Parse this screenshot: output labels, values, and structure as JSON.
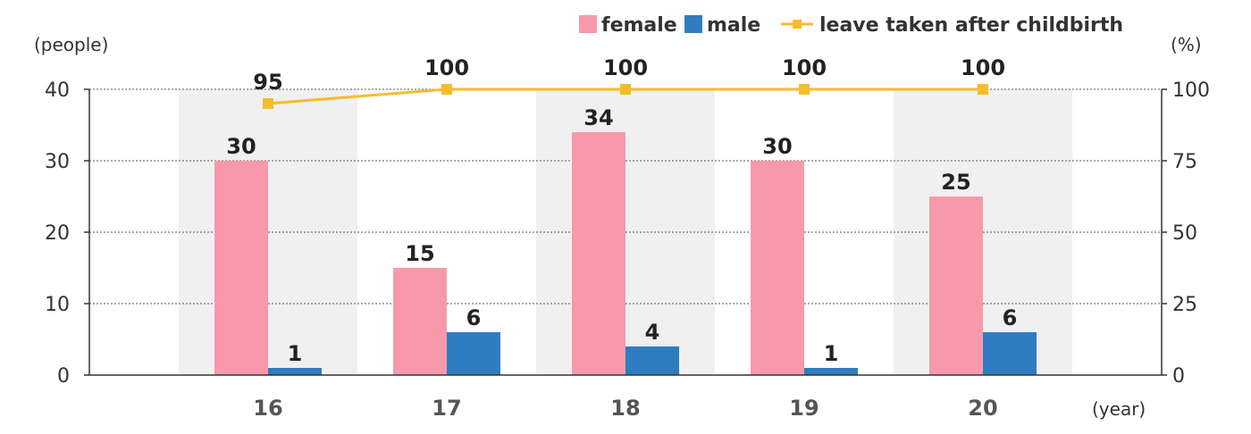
{
  "chart_data": {
    "type": "bar",
    "categories": [
      "16",
      "17",
      "18",
      "19",
      "20"
    ],
    "highlight_category": "20",
    "series": [
      {
        "name": "female",
        "values": [
          30,
          15,
          34,
          30,
          25
        ],
        "color": "#f799ab",
        "kind": "bar"
      },
      {
        "name": "male",
        "values": [
          1,
          6,
          4,
          1,
          6
        ],
        "color": "#2f7dc1",
        "kind": "bar"
      },
      {
        "name": "leave taken after childbirth",
        "values": [
          95,
          100,
          100,
          100,
          100
        ],
        "color": "#f5bd2a",
        "kind": "line",
        "axis": "right"
      }
    ],
    "ylabel_left": "(people)",
    "ylabel_right": "(%)",
    "xlabel": "(year)",
    "ylim_left": [
      0,
      40
    ],
    "yticks_left": [
      0,
      10,
      20,
      30,
      40
    ],
    "ylim_right": [
      0,
      100
    ],
    "yticks_right": [
      0,
      25,
      50,
      75,
      100
    ],
    "grid": "dotted horizontal",
    "legend_position": "top-right",
    "highlight_color": "#e50012",
    "band_color": "#f0f0f0"
  }
}
